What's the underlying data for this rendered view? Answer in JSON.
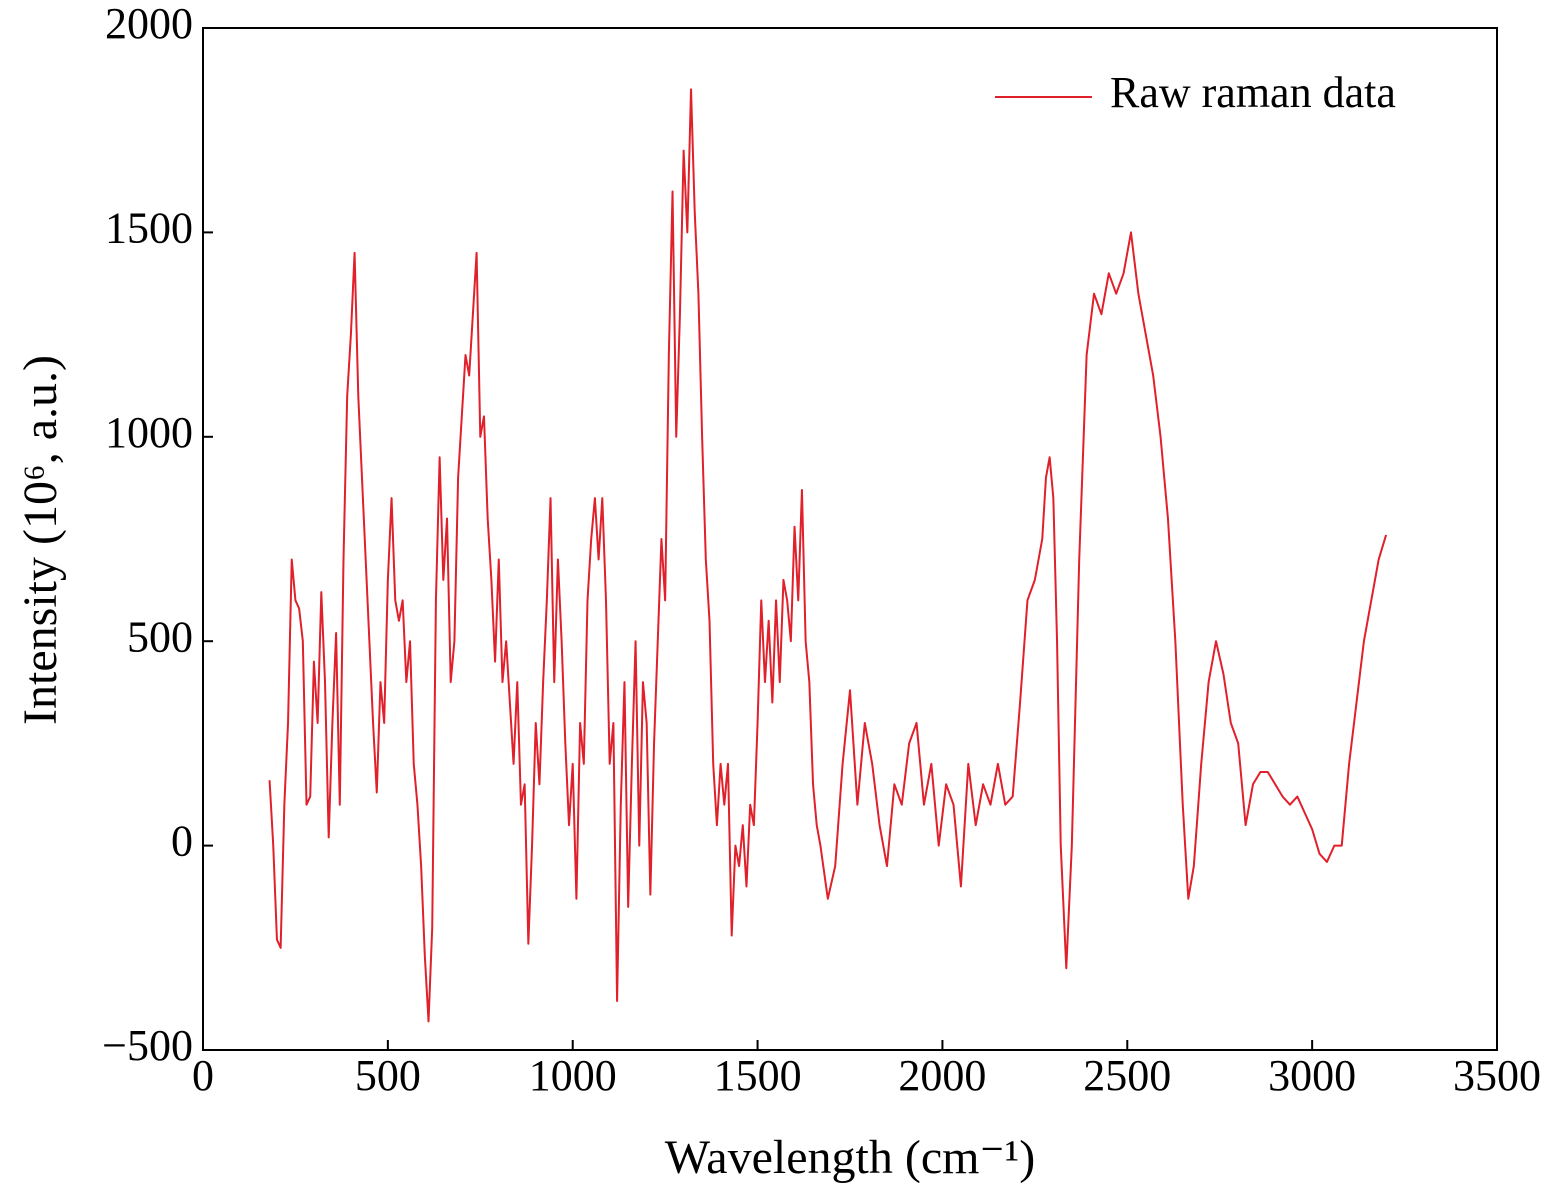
{
  "chart_data": {
    "type": "line",
    "x_label": "Wavelength (cm⁻¹)",
    "y_label": "Intensity (10⁶, a.u.)",
    "xlim": [
      0,
      3500
    ],
    "xticks": [
      0,
      500,
      1000,
      1500,
      2000,
      2500,
      3000,
      3500
    ],
    "ylim": [
      -500,
      2000
    ],
    "yticks": [
      {
        "value": -500,
        "label": "−500"
      },
      0,
      500,
      1000,
      1500,
      2000
    ],
    "legend": "upper right",
    "x": [
      180,
      190,
      200,
      210,
      220,
      230,
      240,
      250,
      260,
      270,
      280,
      290,
      300,
      310,
      320,
      330,
      340,
      350,
      360,
      370,
      380,
      390,
      400,
      410,
      420,
      430,
      440,
      450,
      460,
      470,
      480,
      490,
      500,
      510,
      520,
      530,
      540,
      550,
      560,
      570,
      580,
      590,
      600,
      610,
      620,
      630,
      640,
      650,
      660,
      670,
      680,
      690,
      700,
      710,
      720,
      730,
      740,
      750,
      760,
      770,
      780,
      790,
      800,
      810,
      820,
      830,
      840,
      850,
      860,
      870,
      880,
      890,
      900,
      910,
      920,
      930,
      940,
      950,
      960,
      970,
      980,
      990,
      1000,
      1010,
      1020,
      1030,
      1040,
      1050,
      1060,
      1070,
      1080,
      1090,
      1100,
      1110,
      1120,
      1130,
      1140,
      1150,
      1160,
      1170,
      1180,
      1190,
      1200,
      1210,
      1220,
      1230,
      1240,
      1250,
      1260,
      1270,
      1280,
      1290,
      1300,
      1310,
      1320,
      1330,
      1340,
      1350,
      1360,
      1370,
      1380,
      1390,
      1400,
      1410,
      1420,
      1430,
      1440,
      1450,
      1460,
      1470,
      1480,
      1490,
      1500,
      1510,
      1520,
      1530,
      1540,
      1550,
      1560,
      1570,
      1580,
      1590,
      1600,
      1610,
      1620,
      1630,
      1640,
      1650,
      1660,
      1670,
      1690,
      1710,
      1730,
      1750,
      1770,
      1790,
      1810,
      1830,
      1850,
      1870,
      1890,
      1910,
      1930,
      1950,
      1970,
      1990,
      2010,
      2030,
      2050,
      2070,
      2090,
      2110,
      2130,
      2150,
      2170,
      2190,
      2210,
      2230,
      2250,
      2270,
      2280,
      2290,
      2300,
      2310,
      2320,
      2335,
      2350,
      2370,
      2390,
      2410,
      2430,
      2450,
      2470,
      2490,
      2510,
      2530,
      2550,
      2570,
      2590,
      2610,
      2630,
      2650,
      2665,
      2680,
      2700,
      2720,
      2740,
      2760,
      2780,
      2800,
      2820,
      2840,
      2860,
      2880,
      2900,
      2920,
      2940,
      2960,
      2980,
      3000,
      3020,
      3040,
      3060,
      3080,
      3100,
      3120,
      3140,
      3160,
      3180,
      3200
    ],
    "series": [
      {
        "name": "Raw raman data",
        "color": "#e0202a",
        "values": [
          160,
          0,
          -230,
          -250,
          100,
          300,
          700,
          600,
          580,
          500,
          100,
          120,
          450,
          300,
          620,
          400,
          20,
          300,
          520,
          100,
          700,
          1100,
          1250,
          1450,
          1100,
          900,
          700,
          500,
          300,
          130,
          400,
          300,
          650,
          850,
          600,
          550,
          600,
          400,
          500,
          200,
          100,
          -50,
          -270,
          -430,
          -200,
          600,
          950,
          650,
          800,
          400,
          500,
          900,
          1050,
          1200,
          1150,
          1300,
          1450,
          1000,
          1050,
          800,
          650,
          450,
          700,
          400,
          500,
          350,
          200,
          400,
          100,
          150,
          -240,
          0,
          300,
          150,
          400,
          600,
          850,
          400,
          700,
          500,
          250,
          50,
          200,
          -130,
          300,
          200,
          600,
          750,
          850,
          700,
          850,
          600,
          200,
          300,
          -380,
          100,
          400,
          -150,
          200,
          500,
          0,
          400,
          300,
          -120,
          250,
          500,
          750,
          600,
          1200,
          1600,
          1000,
          1300,
          1700,
          1500,
          1850,
          1550,
          1350,
          1000,
          700,
          550,
          200,
          50,
          200,
          100,
          200,
          -220,
          0,
          -50,
          50,
          -100,
          100,
          50,
          300,
          600,
          400,
          550,
          350,
          600,
          400,
          650,
          600,
          500,
          780,
          600,
          870,
          500,
          400,
          150,
          50,
          0,
          -130,
          -50,
          200,
          380,
          100,
          300,
          200,
          50,
          -50,
          150,
          100,
          250,
          300,
          100,
          200,
          0,
          150,
          100,
          -100,
          200,
          50,
          150,
          100,
          200,
          100,
          120,
          350,
          600,
          650,
          750,
          900,
          950,
          850,
          500,
          0,
          -300,
          0,
          700,
          1200,
          1350,
          1300,
          1400,
          1350,
          1400,
          1500,
          1350,
          1250,
          1150,
          1000,
          800,
          500,
          100,
          -130,
          -50,
          200,
          400,
          500,
          420,
          300,
          250,
          50,
          150,
          180,
          180,
          150,
          120,
          100,
          120,
          80,
          40,
          -20,
          -40,
          0,
          0,
          200,
          350,
          500,
          600,
          700,
          760
        ]
      }
    ]
  }
}
